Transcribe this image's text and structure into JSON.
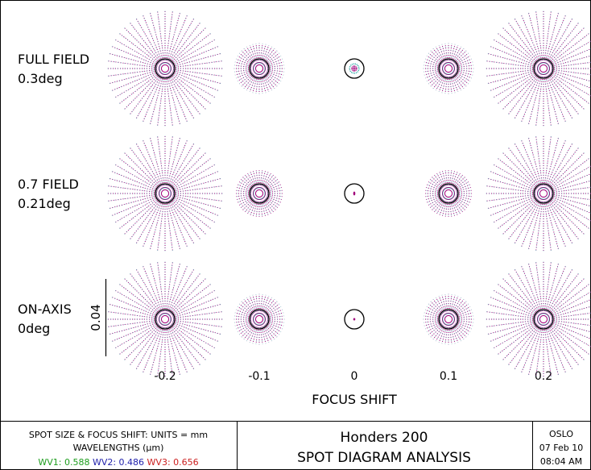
{
  "chart_data": {
    "type": "spot-diagram",
    "title": "SPOT DIAGRAM ANALYSIS",
    "lens_name": "Honders 200",
    "xlabel": "FOCUS SHIFT",
    "focus_shifts": [
      -0.2,
      -0.1,
      0,
      0.1,
      0.2
    ],
    "focus_shift_labels": [
      "-0.2",
      "-0.1",
      "0",
      "0.1",
      "0.2"
    ],
    "scale_bar_label": "0.04",
    "scale_bar_value": 0.04,
    "units": "mm",
    "fields": [
      {
        "name": "FULL FIELD",
        "angle": "0.3deg",
        "spot_sizes": [
          0.03,
          0.013,
          0.002,
          0.013,
          0.03
        ]
      },
      {
        "name": "0.7 FIELD",
        "angle": "0.21deg",
        "spot_sizes": [
          0.03,
          0.012,
          0.001,
          0.012,
          0.03
        ]
      },
      {
        "name": "ON-AXIS",
        "angle": "0deg",
        "spot_sizes": [
          0.03,
          0.013,
          0.0005,
          0.013,
          0.03
        ]
      }
    ],
    "wavelengths": [
      {
        "label": "WV1",
        "value": "0.588",
        "color": "#1f9e1f"
      },
      {
        "label": "WV2",
        "value": "0.486",
        "color": "#1f1faa"
      },
      {
        "label": "WV3",
        "value": "0.656",
        "color": "#cc1f1f"
      }
    ]
  },
  "footer": {
    "units_line": "SPOT SIZE & FOCUS SHIFT: UNITS = mm",
    "wavelengths_heading": "WAVELENGTHS (µm)",
    "program": "OSLO",
    "date": "07 Feb 10",
    "time": "08:04 AM"
  },
  "colors": {
    "frame": "#000000",
    "circle": "#000000",
    "spot_core": "#a0007a",
    "spot_fringe": "#1fa0a0"
  }
}
